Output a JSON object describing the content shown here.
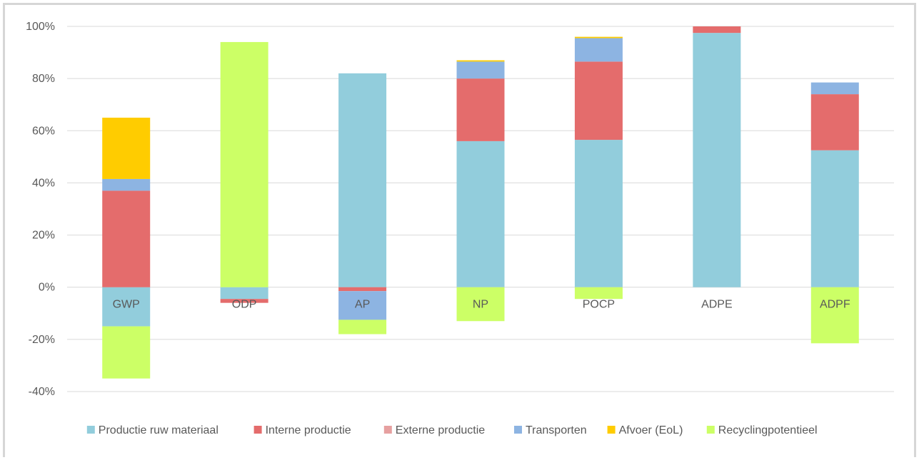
{
  "chart_data": {
    "type": "bar",
    "stacked": true,
    "categories": [
      "GWP",
      "ODP",
      "AP",
      "NP",
      "POCP",
      "ADPE",
      "ADPF"
    ],
    "y_ticks": [
      "100%",
      "80%",
      "60%",
      "40%",
      "20%",
      "0%",
      "-20%",
      "-40%"
    ],
    "ylim": [
      -40,
      100
    ],
    "grid": true,
    "legend_position": "bottom",
    "series": [
      {
        "name": "Productie ruw materiaal",
        "color": "#92CDDC",
        "values": [
          -15,
          -4.5,
          82,
          56,
          56.5,
          97.5,
          52.5
        ]
      },
      {
        "name": "Interne productie",
        "color": "#E46C6C",
        "values": [
          37,
          -1.5,
          -1.5,
          24,
          30,
          2.5,
          21.5
        ]
      },
      {
        "name": "Externe productie",
        "color": "#E6A0A0",
        "values": [
          0,
          0,
          0,
          0,
          0,
          0,
          0
        ]
      },
      {
        "name": "Transporten",
        "color": "#8DB4E2",
        "values": [
          4.5,
          0,
          -11,
          6.5,
          9,
          0,
          4.5
        ]
      },
      {
        "name": "Afvoer (EoL)",
        "color": "#FFCC00",
        "values": [
          23.5,
          0,
          0,
          0.5,
          0.5,
          0,
          0
        ]
      },
      {
        "name": "Recyclingpotentieel",
        "color": "#CCFF66",
        "values": [
          -20,
          94,
          -5.5,
          -13,
          -4.5,
          0,
          -21.5
        ]
      }
    ]
  }
}
